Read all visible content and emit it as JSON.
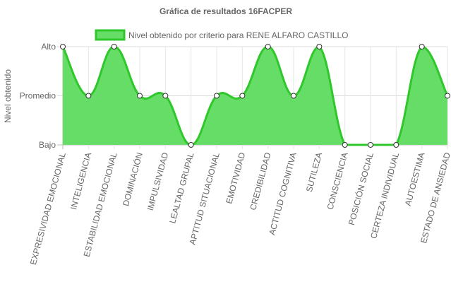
{
  "chart_data": {
    "type": "line",
    "title": "Gráfica de resultados 16FACPER",
    "ylabel": "Nivel obtenido",
    "xlabel": "",
    "y_levels": [
      "Bajo",
      "Promedio",
      "Alto"
    ],
    "ylim": [
      0,
      2
    ],
    "grid": true,
    "legend_position": "top",
    "categories": [
      "EXPRESIVIDAD EMOCIONAL",
      "INTELIGENCIA",
      "ESTABILIDAD EMOCIONAL",
      "DOMINACIÓN",
      "IMPULSIVIDAD",
      "LEALTAD GRUPAL",
      "APTITUD SITUACIONAL",
      "EMOTIVIDAD",
      "CREDIBILIDAD",
      "ACTITUD COGNITIVA",
      "SUTILEZA",
      "CONSCIENCIA",
      "POSICIÓN SOCIAL",
      "CERTEZA INDIVIDUAL",
      "AUTOESTIMA",
      "ESTADO DE ANSIEDAD"
    ],
    "series": [
      {
        "name": "Nivel obtenido por criterio para RENE ALFARO CASTILLO",
        "values": [
          2,
          1,
          2,
          1,
          1,
          0,
          1,
          1,
          2,
          1,
          2,
          0,
          0,
          0,
          2,
          1
        ],
        "color": "#2fc72b",
        "fill": "#66dd66"
      }
    ]
  }
}
